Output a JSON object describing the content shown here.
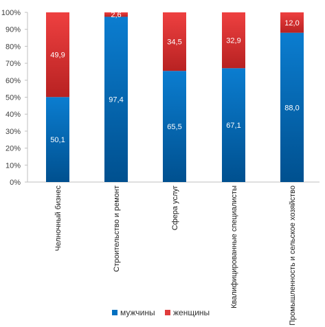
{
  "chart_data": {
    "type": "bar",
    "stacked": true,
    "percent": true,
    "categories": [
      "Челночный бизнес",
      "Строительство и ремонт",
      "Сфера услуг",
      "Квалифицированные специалисты",
      "Промышленность и сельское хозяйство"
    ],
    "series": [
      {
        "name": "мужчины",
        "values": [
          50.1,
          97.4,
          65.5,
          67.1,
          88.0
        ],
        "labels": [
          "50,1",
          "97,4",
          "65,5",
          "67,1",
          "88,0"
        ],
        "color": "#0070C0"
      },
      {
        "name": "женщины",
        "values": [
          49.9,
          2.6,
          34.5,
          32.9,
          12.0
        ],
        "labels": [
          "49,9",
          "2,6",
          "34,5",
          "32,9",
          "12,0"
        ],
        "color": "#E03C3C"
      }
    ],
    "yticks": [
      "0%",
      "10%",
      "20%",
      "30%",
      "40%",
      "50%",
      "60%",
      "70%",
      "80%",
      "90%",
      "100%"
    ],
    "ylim": [
      0,
      100
    ],
    "legend_position": "bottom",
    "grid": false
  }
}
